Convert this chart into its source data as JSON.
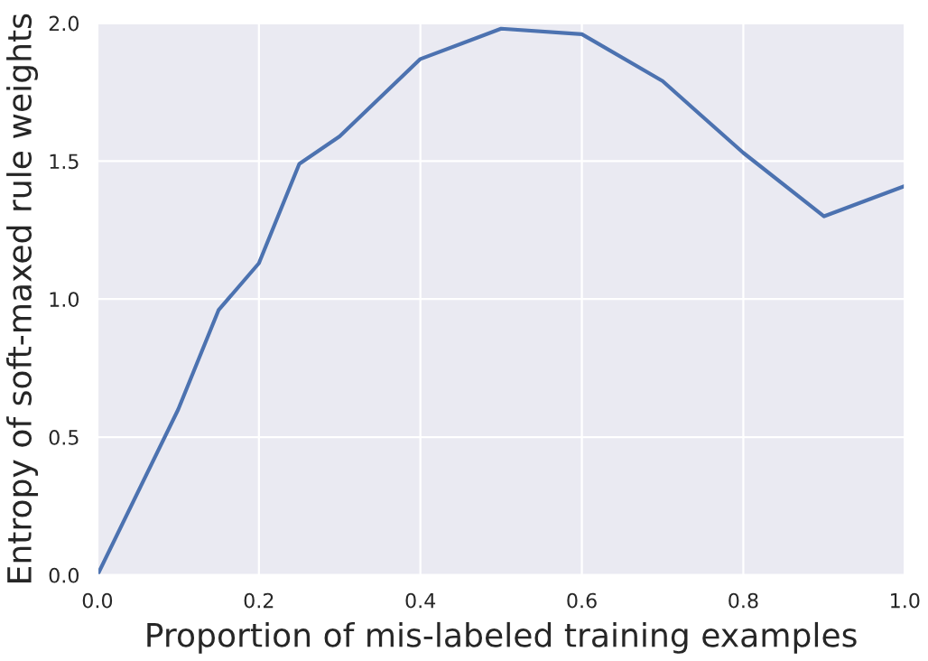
{
  "chart_data": {
    "type": "line",
    "xlabel": "Proportion of mis-labeled training examples",
    "ylabel": "Entropy of soft-maxed rule weights",
    "x": [
      0,
      0.1,
      0.15,
      0.2,
      0.25,
      0.3,
      0.4,
      0.5,
      0.6,
      0.7,
      0.8,
      0.9,
      1.0
    ],
    "series": [
      {
        "color": "#4c72b0",
        "values": [
          0,
          0.6,
          0.96,
          1.13,
          1.49,
          1.59,
          1.87,
          1.98,
          1.96,
          1.79,
          1.53,
          1.3,
          1.41
        ]
      }
    ],
    "xlim": [
      0,
      1
    ],
    "xticks": [
      {
        "value": 0,
        "label": "0.0"
      },
      0.2,
      0.4,
      0.6,
      0.8,
      {
        "value": 1,
        "label": "1.0"
      }
    ],
    "ylim": [
      0,
      2
    ],
    "yticks": [
      {
        "value": 0,
        "label": "0.0"
      },
      0.5,
      {
        "value": 1,
        "label": "1.0"
      },
      1.5,
      {
        "value": 2,
        "label": "2.0"
      }
    ],
    "grid": true,
    "line_style": "solid",
    "marker": "none"
  }
}
